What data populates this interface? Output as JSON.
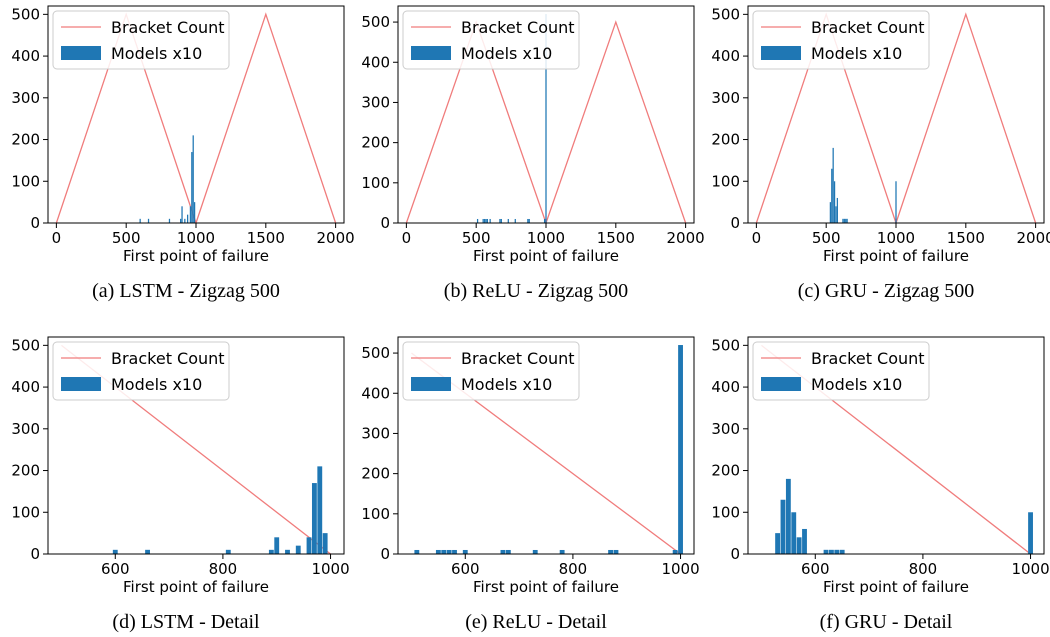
{
  "colors": {
    "line": "#f07c7c",
    "bar": "#1f77b4",
    "axis": "#000000"
  },
  "chart_data": [
    {
      "panel": "a",
      "caption": "(a) LSTM - Zigzag 500",
      "type": "bar",
      "xlabel": "First point of failure",
      "xlim": [
        -60,
        2060
      ],
      "ylim": [
        0,
        520
      ],
      "xticks": [
        0,
        500,
        1000,
        1500,
        2000
      ],
      "yticks": [
        0,
        100,
        200,
        300,
        400,
        500
      ],
      "legend": {
        "position": "top-left",
        "line_label": "Bracket Count",
        "bar_label": "Models x10"
      },
      "line": {
        "name": "Bracket Count",
        "x": [
          0,
          500,
          1000,
          1500,
          2000
        ],
        "y": [
          0,
          500,
          0,
          500,
          0
        ]
      },
      "bar_width": 10,
      "bars": {
        "name": "Models x10",
        "x": [
          600,
          660,
          810,
          890,
          900,
          920,
          940,
          960,
          970,
          980,
          990
        ],
        "y": [
          10,
          10,
          10,
          10,
          40,
          10,
          20,
          40,
          170,
          210,
          50
        ]
      }
    },
    {
      "panel": "b",
      "caption": "(b) ReLU - Zigzag 500",
      "type": "bar",
      "xlabel": "First point of failure",
      "xlim": [
        -60,
        2060
      ],
      "ylim": [
        0,
        540
      ],
      "xticks": [
        0,
        500,
        1000,
        1500,
        2000
      ],
      "yticks": [
        0,
        100,
        200,
        300,
        400,
        500
      ],
      "legend": {
        "position": "top-left",
        "line_label": "Bracket Count",
        "bar_label": "Models x10"
      },
      "line": {
        "name": "Bracket Count",
        "x": [
          0,
          500,
          1000,
          1500,
          2000
        ],
        "y": [
          0,
          500,
          0,
          500,
          0
        ]
      },
      "bar_width": 10,
      "bars": {
        "name": "Models x10",
        "x": [
          510,
          550,
          560,
          570,
          580,
          600,
          670,
          680,
          730,
          780,
          870,
          880,
          990,
          1000
        ],
        "y": [
          10,
          10,
          10,
          10,
          10,
          10,
          10,
          10,
          10,
          10,
          10,
          10,
          10,
          520
        ]
      }
    },
    {
      "panel": "c",
      "caption": "(c) GRU - Zigzag 500",
      "type": "bar",
      "xlabel": "First point of failure",
      "xlim": [
        -60,
        2060
      ],
      "ylim": [
        0,
        520
      ],
      "xticks": [
        0,
        500,
        1000,
        1500,
        2000
      ],
      "yticks": [
        0,
        100,
        200,
        300,
        400,
        500
      ],
      "legend": {
        "position": "top-left",
        "line_label": "Bracket Count",
        "bar_label": "Models x10"
      },
      "line": {
        "name": "Bracket Count",
        "x": [
          0,
          500,
          1000,
          1500,
          2000
        ],
        "y": [
          0,
          500,
          0,
          500,
          0
        ]
      },
      "bar_width": 10,
      "bars": {
        "name": "Models x10",
        "x": [
          530,
          540,
          550,
          560,
          570,
          580,
          620,
          630,
          640,
          650,
          1000
        ],
        "y": [
          50,
          130,
          180,
          100,
          40,
          60,
          10,
          10,
          10,
          10,
          100
        ]
      }
    },
    {
      "panel": "d",
      "caption": "(d) LSTM - Detail",
      "type": "bar",
      "xlabel": "First point of failure",
      "xlim": [
        475,
        1025
      ],
      "ylim": [
        0,
        520
      ],
      "xticks": [
        600,
        800,
        1000
      ],
      "yticks": [
        0,
        100,
        200,
        300,
        400,
        500
      ],
      "legend": {
        "position": "top-left",
        "line_label": "Bracket Count",
        "bar_label": "Models x10"
      },
      "line": {
        "name": "Bracket Count",
        "x": [
          500,
          1000
        ],
        "y": [
          500,
          0
        ]
      },
      "bar_width": 10,
      "bars": {
        "name": "Models x10",
        "x": [
          600,
          660,
          810,
          890,
          900,
          920,
          940,
          960,
          970,
          980,
          990
        ],
        "y": [
          10,
          10,
          10,
          10,
          40,
          10,
          20,
          40,
          170,
          210,
          50
        ]
      }
    },
    {
      "panel": "e",
      "caption": "(e) ReLU - Detail",
      "type": "bar",
      "xlabel": "First point of failure",
      "xlim": [
        475,
        1025
      ],
      "ylim": [
        0,
        540
      ],
      "xticks": [
        600,
        800,
        1000
      ],
      "yticks": [
        0,
        100,
        200,
        300,
        400,
        500
      ],
      "legend": {
        "position": "top-left",
        "line_label": "Bracket Count",
        "bar_label": "Models x10"
      },
      "line": {
        "name": "Bracket Count",
        "x": [
          500,
          1000
        ],
        "y": [
          500,
          0
        ]
      },
      "bar_width": 10,
      "bars": {
        "name": "Models x10",
        "x": [
          510,
          550,
          560,
          570,
          580,
          600,
          670,
          680,
          730,
          780,
          870,
          880,
          990,
          1000
        ],
        "y": [
          10,
          10,
          10,
          10,
          10,
          10,
          10,
          10,
          10,
          10,
          10,
          10,
          10,
          520
        ]
      }
    },
    {
      "panel": "f",
      "caption": "(f) GRU - Detail",
      "type": "bar",
      "xlabel": "First point of failure",
      "xlim": [
        475,
        1025
      ],
      "ylim": [
        0,
        520
      ],
      "xticks": [
        600,
        800,
        1000
      ],
      "yticks": [
        0,
        100,
        200,
        300,
        400,
        500
      ],
      "legend": {
        "position": "top-left",
        "line_label": "Bracket Count",
        "bar_label": "Models x10"
      },
      "line": {
        "name": "Bracket Count",
        "x": [
          500,
          1000
        ],
        "y": [
          500,
          0
        ]
      },
      "bar_width": 10,
      "bars": {
        "name": "Models x10",
        "x": [
          530,
          540,
          550,
          560,
          570,
          580,
          620,
          630,
          640,
          650,
          1000
        ],
        "y": [
          50,
          130,
          180,
          100,
          40,
          60,
          10,
          10,
          10,
          10,
          100
        ]
      }
    }
  ]
}
